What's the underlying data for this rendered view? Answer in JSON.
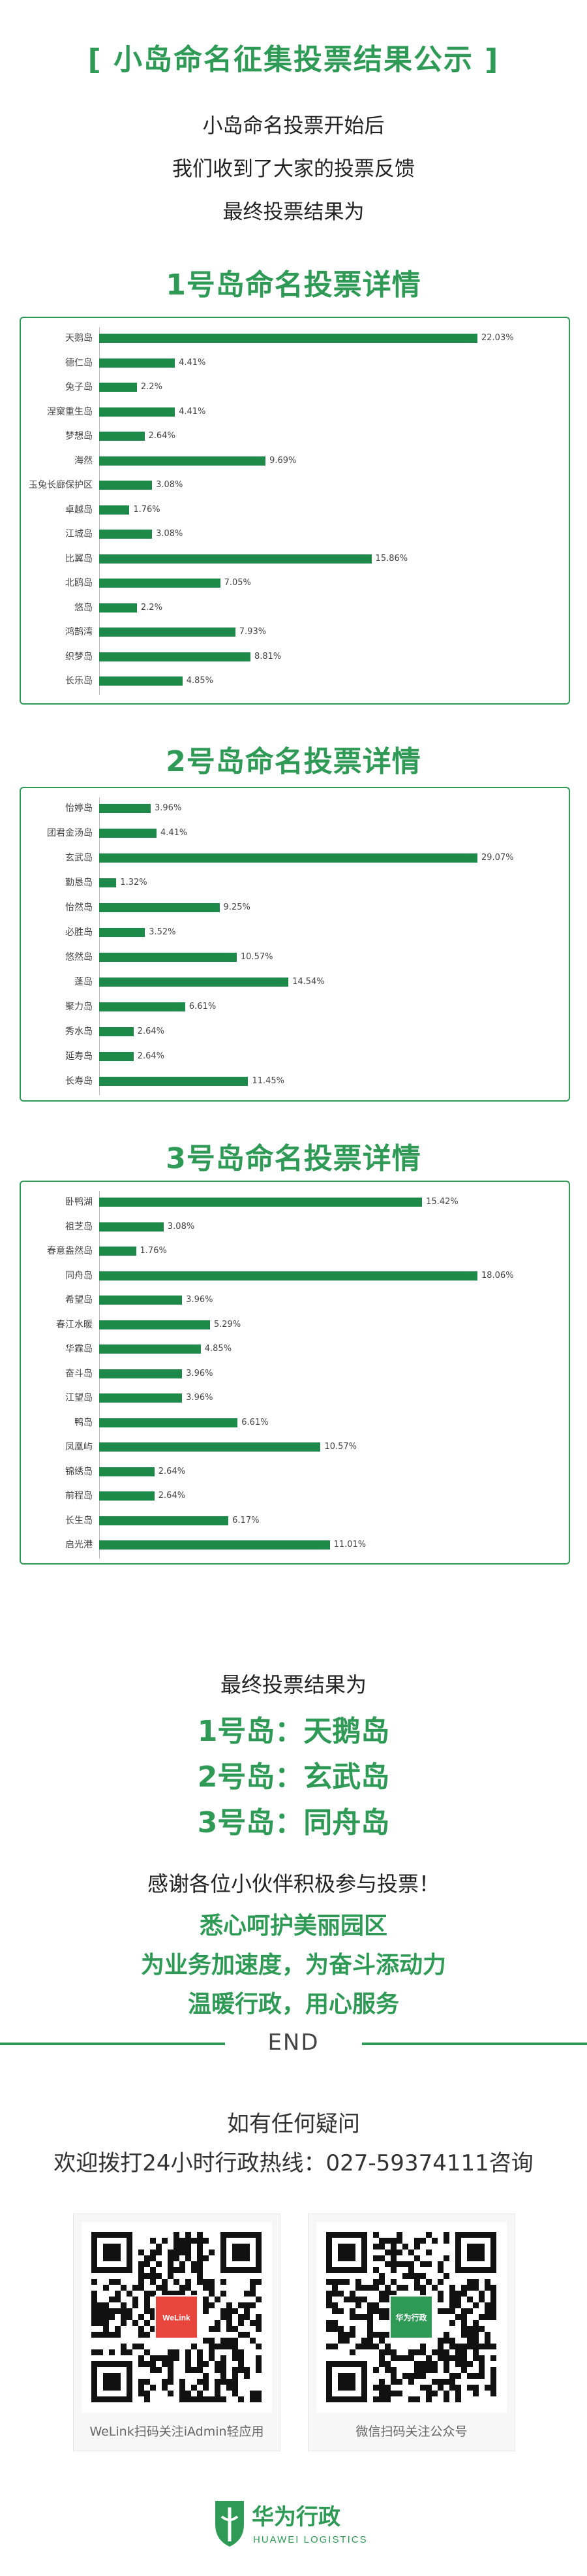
{
  "header": {
    "title": "[ 小岛命名征集投票结果公示 ]",
    "intro": [
      "小岛命名投票开始后",
      "我们收到了大家的投票反馈",
      "最终投票结果为"
    ]
  },
  "sections": [
    {
      "title": "1号岛命名投票详情"
    },
    {
      "title": "2号岛命名投票详情"
    },
    {
      "title": "3号岛命名投票详情"
    }
  ],
  "chart_data": [
    {
      "type": "bar",
      "orientation": "horizontal",
      "categories": [
        "天鹅岛",
        "德仁岛",
        "兔子岛",
        "涅窠重生岛",
        "梦想岛",
        "海然",
        "玉兔长廊保护区",
        "卓越岛",
        "江城岛",
        "比翼岛",
        "北鸥岛",
        "悠岛",
        "鸿鹄湾",
        "织梦岛",
        "长乐岛"
      ],
      "values": [
        22.03,
        4.41,
        2.2,
        4.41,
        2.64,
        9.69,
        3.08,
        1.76,
        3.08,
        15.86,
        7.05,
        2.2,
        7.93,
        8.81,
        4.85
      ],
      "value_labels": [
        "22.03%",
        "4.41%",
        "2.2%",
        "4.41%",
        "2.64%",
        "9.69%",
        "3.08%",
        "1.76%",
        "3.08%",
        "15.86%",
        "7.05%",
        "2.2%",
        "7.93%",
        "8.81%",
        "4.85%"
      ],
      "bar_color": "#1e8a4a",
      "xlim": [
        0,
        22.03
      ]
    },
    {
      "type": "bar",
      "orientation": "horizontal",
      "categories": [
        "怡婷岛",
        "团君金汤岛",
        "玄武岛",
        "勤恳岛",
        "怡然岛",
        "必胜岛",
        "悠然岛",
        "蓬岛",
        "聚力岛",
        "秀水岛",
        "延寿岛",
        "长寿岛"
      ],
      "values": [
        3.96,
        4.41,
        29.07,
        1.32,
        9.25,
        3.52,
        10.57,
        14.54,
        6.61,
        2.64,
        2.64,
        11.45
      ],
      "value_labels": [
        "3.96%",
        "4.41%",
        "29.07%",
        "1.32%",
        "9.25%",
        "3.52%",
        "10.57%",
        "14.54%",
        "6.61%",
        "2.64%",
        "2.64%",
        "11.45%"
      ],
      "bar_color": "#1e8a4a",
      "xlim": [
        0,
        29.07
      ]
    },
    {
      "type": "bar",
      "orientation": "horizontal",
      "categories": [
        "卧鸭湖",
        "祖芝岛",
        "春意盎然岛",
        "同舟岛",
        "希望岛",
        "春江水暖",
        "华霖岛",
        "奋斗岛",
        "江望岛",
        "鸭岛",
        "凤凰屿",
        "锦绣岛",
        "前程岛",
        "长生岛",
        "启光港"
      ],
      "values": [
        15.42,
        3.08,
        1.76,
        18.06,
        3.96,
        5.29,
        4.85,
        3.96,
        3.96,
        6.61,
        10.57,
        2.64,
        2.64,
        6.17,
        11.01
      ],
      "value_labels": [
        "15.42%",
        "3.08%",
        "1.76%",
        "18.06%",
        "3.96%",
        "5.29%",
        "4.85%",
        "3.96%",
        "3.96%",
        "6.61%",
        "10.57%",
        "2.64%",
        "2.64%",
        "6.17%",
        "11.01%"
      ],
      "bar_color": "#1e8a4a",
      "xlim": [
        0,
        18.06
      ]
    }
  ],
  "final": {
    "heading": "最终投票结果为",
    "results": [
      "1号岛：天鹅岛",
      "2号岛：玄武岛",
      "3号岛：同舟岛"
    ]
  },
  "thanks": {
    "line": "感谢各位小伙伴积极参与投票！",
    "slogans": [
      "悉心呵护美丽园区",
      "为业务加速度，为奋斗添动力",
      "温暖行政，用心服务"
    ]
  },
  "end": {
    "label": "END"
  },
  "contact": {
    "line1": "如有任何疑问",
    "line2": "欢迎拨打24小时行政热线：027-59374111咨询"
  },
  "qr": [
    {
      "caption": "WeLink扫码关注iAdmin轻应用",
      "center_badge": "WeLink"
    },
    {
      "caption": "微信扫码关注公众号",
      "center_badge": "华为行政"
    }
  ],
  "footer": {
    "logo_cn": "华为行政",
    "logo_en": "HUAWEI LOGISTICS"
  },
  "colors": {
    "brand_green": "#2e9a56",
    "bar_green": "#1e8a4a",
    "welink_red": "#e8463c"
  }
}
